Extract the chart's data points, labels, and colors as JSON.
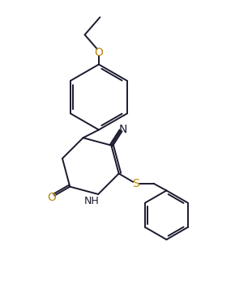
{
  "bg_color": "#ffffff",
  "line_color": "#1a1a2e",
  "label_color_N": "#1a1a2e",
  "label_color_O": "#b8860b",
  "label_color_S": "#b8860b",
  "line_width": 1.4,
  "figsize": [
    2.9,
    3.67
  ],
  "dpi": 100,
  "xlim": [
    0,
    10
  ],
  "ylim": [
    0,
    12.6
  ]
}
